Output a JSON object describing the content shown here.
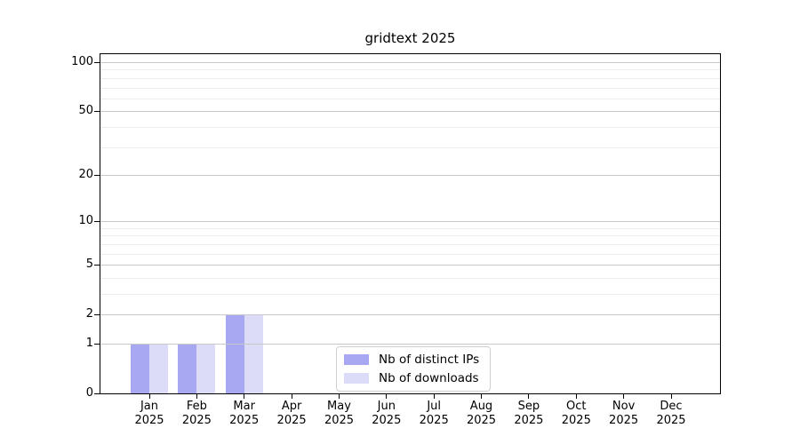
{
  "title": "gridtext 2025",
  "chart_data": {
    "type": "bar",
    "title": "gridtext 2025",
    "categories": [
      "Jan",
      "Feb",
      "Mar",
      "Apr",
      "May",
      "Jun",
      "Jul",
      "Aug",
      "Sep",
      "Oct",
      "Nov",
      "Dec"
    ],
    "year": "2025",
    "series": [
      {
        "name": "Nb of distinct IPs",
        "color": "#a8a8f2",
        "values": [
          1,
          1,
          2,
          0,
          0,
          0,
          0,
          0,
          0,
          0,
          0,
          0
        ]
      },
      {
        "name": "Nb of downloads",
        "color": "#dcdcf8",
        "values": [
          1,
          1,
          2,
          0,
          0,
          0,
          0,
          0,
          0,
          0,
          0,
          0
        ]
      }
    ],
    "xlabel": "",
    "ylabel": "",
    "y_scale": "log1p",
    "ylim": [
      0,
      100
    ],
    "y_ticks": [
      0,
      1,
      2,
      5,
      10,
      20,
      50,
      100
    ],
    "y_minor_gridlines": [
      3,
      4,
      6,
      7,
      8,
      9,
      30,
      40,
      60,
      70,
      80,
      90
    ],
    "grid": "horizontal",
    "legend_position": "bottom-center",
    "bar_style": "grouped-pairs-centered-on-month-ticks"
  },
  "colors": {
    "major_gridline": "#c8c8c8",
    "minor_gridline": "#ededed",
    "axis": "#000000",
    "background": "#ffffff",
    "legend_border": "#cfcfcf"
  }
}
